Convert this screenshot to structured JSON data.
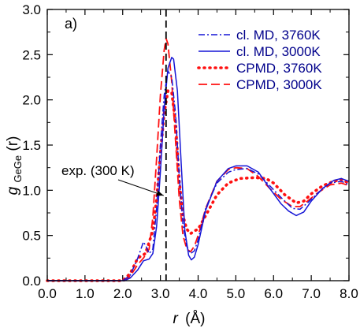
{
  "chart_data": {
    "type": "line",
    "panel_label": "a)",
    "xlabel_main": "r",
    "xlabel_unit": "(Å)",
    "ylabel_main": "g",
    "ylabel_sub": "GeGe",
    "ylabel_arg": "(r)",
    "xlim": [
      0.0,
      8.0
    ],
    "ylim": [
      0.0,
      3.0
    ],
    "x_ticks": [
      "0.0",
      "1.0",
      "2.0",
      "3.0",
      "4.0",
      "5.0",
      "6.0",
      "7.0",
      "8.0"
    ],
    "y_ticks": [
      "0.0",
      "0.5",
      "1.0",
      "1.5",
      "2.0",
      "2.5",
      "3.0"
    ],
    "colors": {
      "blue": "#1515d6",
      "red": "#ff1010",
      "legend_text": "#00008b",
      "axis": "#000000"
    },
    "annotation": {
      "text": "exp. (300 K)",
      "x": 3.15
    },
    "series": [
      {
        "name": "cl. MD, 3760K",
        "color": "#1515d6",
        "style": "dashdot",
        "points": [
          [
            0,
            0
          ],
          [
            2.0,
            0
          ],
          [
            2.2,
            0.06
          ],
          [
            2.4,
            0.25
          ],
          [
            2.55,
            0.43
          ],
          [
            2.62,
            0.38
          ],
          [
            2.7,
            0.3
          ],
          [
            2.8,
            0.35
          ],
          [
            2.9,
            0.8
          ],
          [
            3.0,
            1.5
          ],
          [
            3.1,
            2.05
          ],
          [
            3.2,
            2.32
          ],
          [
            3.3,
            2.25
          ],
          [
            3.4,
            1.85
          ],
          [
            3.5,
            1.15
          ],
          [
            3.6,
            0.62
          ],
          [
            3.7,
            0.38
          ],
          [
            3.8,
            0.3
          ],
          [
            3.9,
            0.33
          ],
          [
            4.0,
            0.45
          ],
          [
            4.2,
            0.8
          ],
          [
            4.5,
            1.08
          ],
          [
            4.8,
            1.2
          ],
          [
            5.0,
            1.23
          ],
          [
            5.3,
            1.24
          ],
          [
            5.6,
            1.18
          ],
          [
            5.9,
            1.05
          ],
          [
            6.2,
            0.92
          ],
          [
            6.5,
            0.8
          ],
          [
            6.7,
            0.79
          ],
          [
            6.9,
            0.86
          ],
          [
            7.2,
            0.98
          ],
          [
            7.5,
            1.08
          ],
          [
            7.8,
            1.1
          ],
          [
            8.0,
            1.06
          ]
        ]
      },
      {
        "name": "cl. MD, 3000K",
        "color": "#1515d6",
        "style": "solid",
        "points": [
          [
            0,
            0
          ],
          [
            2.05,
            0
          ],
          [
            2.2,
            0.03
          ],
          [
            2.4,
            0.12
          ],
          [
            2.55,
            0.22
          ],
          [
            2.7,
            0.24
          ],
          [
            2.8,
            0.3
          ],
          [
            2.9,
            0.6
          ],
          [
            3.0,
            1.2
          ],
          [
            3.1,
            1.9
          ],
          [
            3.2,
            2.35
          ],
          [
            3.3,
            2.47
          ],
          [
            3.35,
            2.45
          ],
          [
            3.45,
            2.1
          ],
          [
            3.55,
            1.3
          ],
          [
            3.65,
            0.55
          ],
          [
            3.75,
            0.28
          ],
          [
            3.82,
            0.23
          ],
          [
            3.9,
            0.26
          ],
          [
            4.0,
            0.4
          ],
          [
            4.2,
            0.78
          ],
          [
            4.5,
            1.1
          ],
          [
            4.8,
            1.24
          ],
          [
            5.0,
            1.27
          ],
          [
            5.3,
            1.27
          ],
          [
            5.6,
            1.2
          ],
          [
            5.9,
            1.02
          ],
          [
            6.2,
            0.85
          ],
          [
            6.4,
            0.77
          ],
          [
            6.6,
            0.72
          ],
          [
            6.8,
            0.76
          ],
          [
            7.0,
            0.88
          ],
          [
            7.3,
            1.02
          ],
          [
            7.6,
            1.11
          ],
          [
            7.8,
            1.13
          ],
          [
            8.0,
            1.1
          ]
        ]
      },
      {
        "name": "CPMD, 3760K",
        "color": "#ff1010",
        "style": "dotted",
        "points": [
          [
            0,
            0
          ],
          [
            2.0,
            0
          ],
          [
            2.2,
            0.08
          ],
          [
            2.4,
            0.25
          ],
          [
            2.6,
            0.3
          ],
          [
            2.8,
            0.55
          ],
          [
            2.9,
            0.9
          ],
          [
            3.0,
            1.4
          ],
          [
            3.1,
            1.85
          ],
          [
            3.2,
            2.1
          ],
          [
            3.3,
            2.08
          ],
          [
            3.4,
            1.75
          ],
          [
            3.5,
            1.1
          ],
          [
            3.6,
            0.72
          ],
          [
            3.7,
            0.57
          ],
          [
            3.8,
            0.52
          ],
          [
            3.9,
            0.55
          ],
          [
            4.0,
            0.57
          ],
          [
            4.2,
            0.72
          ],
          [
            4.5,
            0.95
          ],
          [
            4.8,
            1.08
          ],
          [
            5.1,
            1.13
          ],
          [
            5.5,
            1.14
          ],
          [
            5.8,
            1.13
          ],
          [
            6.0,
            1.08
          ],
          [
            6.3,
            0.95
          ],
          [
            6.6,
            0.86
          ],
          [
            6.8,
            0.88
          ],
          [
            7.0,
            0.96
          ],
          [
            7.3,
            1.05
          ],
          [
            7.6,
            1.1
          ],
          [
            7.8,
            1.12
          ],
          [
            8.0,
            1.08
          ]
        ]
      },
      {
        "name": "CPMD, 3000K",
        "color": "#ff1010",
        "style": "dashed",
        "points": [
          [
            0,
            0
          ],
          [
            2.05,
            0
          ],
          [
            2.2,
            0.05
          ],
          [
            2.4,
            0.18
          ],
          [
            2.55,
            0.25
          ],
          [
            2.7,
            0.35
          ],
          [
            2.8,
            0.7
          ],
          [
            2.9,
            1.35
          ],
          [
            3.0,
            2.05
          ],
          [
            3.1,
            2.55
          ],
          [
            3.15,
            2.68
          ],
          [
            3.2,
            2.62
          ],
          [
            3.3,
            2.2
          ],
          [
            3.4,
            1.55
          ],
          [
            3.5,
            0.9
          ],
          [
            3.6,
            0.5
          ],
          [
            3.7,
            0.35
          ],
          [
            3.8,
            0.32
          ],
          [
            3.9,
            0.38
          ],
          [
            4.0,
            0.5
          ],
          [
            4.2,
            0.8
          ],
          [
            4.5,
            1.1
          ],
          [
            4.8,
            1.23
          ],
          [
            5.0,
            1.25
          ],
          [
            5.3,
            1.24
          ],
          [
            5.6,
            1.15
          ],
          [
            5.9,
            1.02
          ],
          [
            6.2,
            0.9
          ],
          [
            6.5,
            0.82
          ],
          [
            6.7,
            0.82
          ],
          [
            6.9,
            0.88
          ],
          [
            7.2,
            0.98
          ],
          [
            7.5,
            1.06
          ],
          [
            7.8,
            1.08
          ],
          [
            8.0,
            1.05
          ]
        ]
      }
    ]
  }
}
